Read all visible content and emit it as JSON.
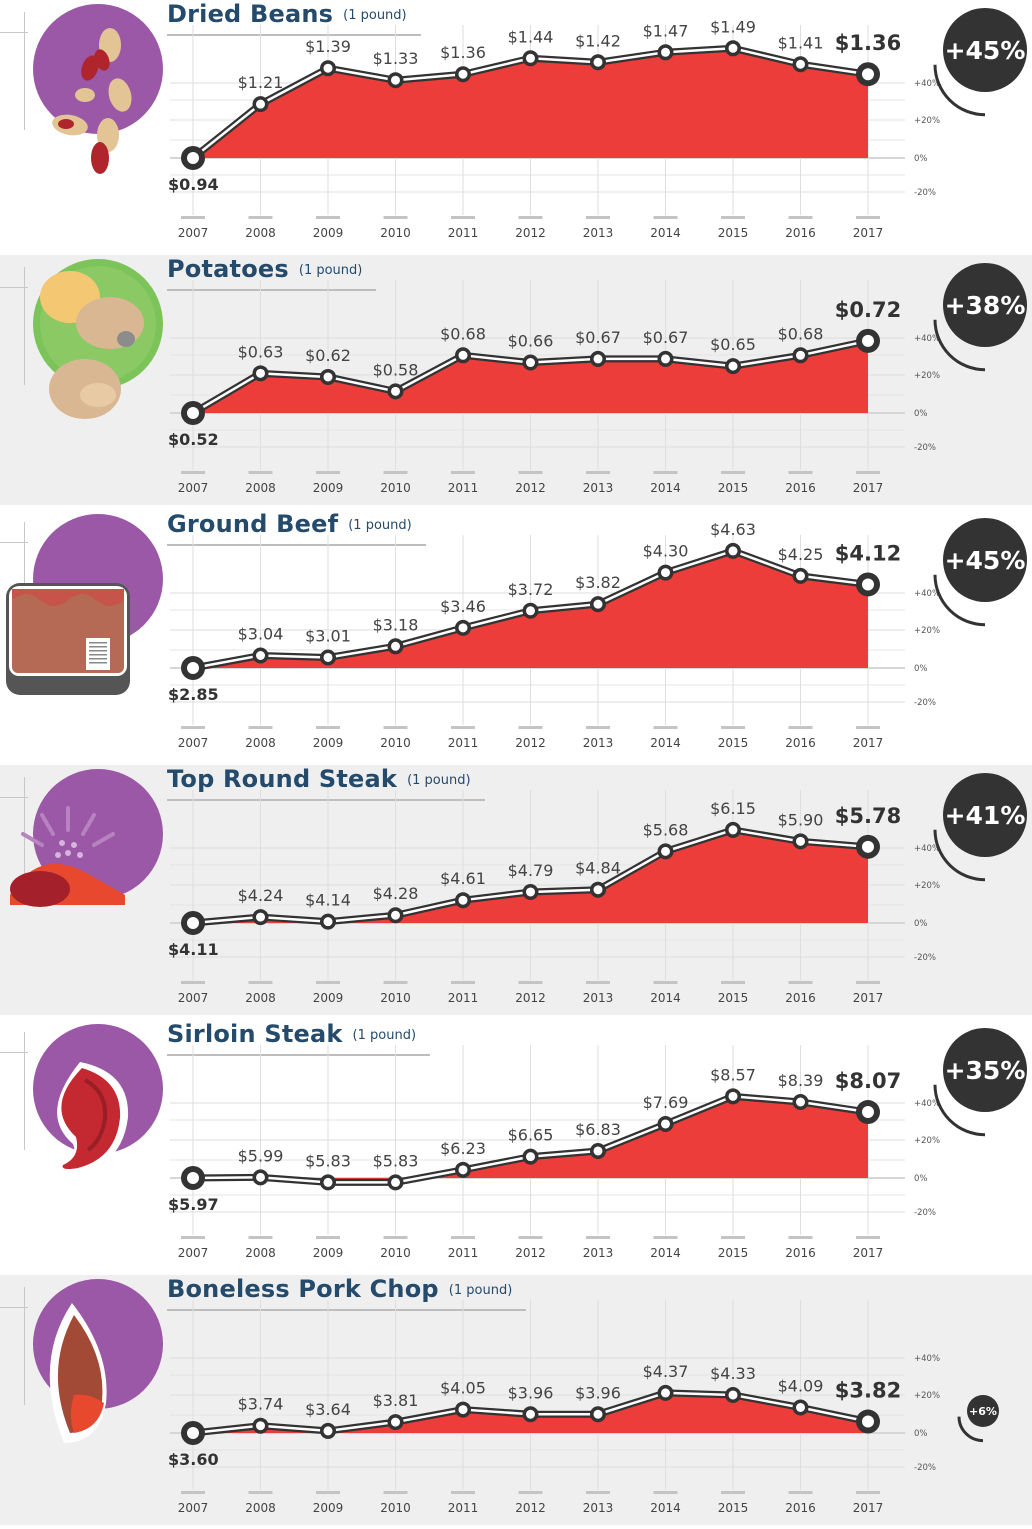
{
  "years": [
    "2007",
    "2008",
    "2009",
    "2010",
    "2011",
    "2012",
    "2013",
    "2014",
    "2015",
    "2016",
    "2017"
  ],
  "pct_ticks": [
    "+40%",
    "+20%",
    "0%",
    "-20%"
  ],
  "chart_data": [
    {
      "type": "area",
      "title": "Dried Beans",
      "unit": "(1 pound)",
      "x": [
        "2007",
        "2008",
        "2009",
        "2010",
        "2011",
        "2012",
        "2013",
        "2014",
        "2015",
        "2016",
        "2017"
      ],
      "values": [
        0.94,
        1.21,
        1.39,
        1.33,
        1.36,
        1.44,
        1.42,
        1.47,
        1.49,
        1.41,
        1.36
      ],
      "labels": [
        "$0.94",
        "$1.21",
        "$1.39",
        "$1.33",
        "$1.36",
        "$1.44",
        "$1.42",
        "$1.47",
        "$1.49",
        "$1.41",
        "$1.36"
      ],
      "change": "+45%",
      "change_value": 45,
      "icon": "beans-icon"
    },
    {
      "type": "area",
      "title": "Potatoes",
      "unit": "(1 pound)",
      "x": [
        "2007",
        "2008",
        "2009",
        "2010",
        "2011",
        "2012",
        "2013",
        "2014",
        "2015",
        "2016",
        "2017"
      ],
      "values": [
        0.52,
        0.63,
        0.62,
        0.58,
        0.68,
        0.66,
        0.67,
        0.67,
        0.65,
        0.68,
        0.72
      ],
      "labels": [
        "$0.52",
        "$0.63",
        "$0.62",
        "$0.58",
        "$0.68",
        "$0.66",
        "$0.67",
        "$0.67",
        "$0.65",
        "$0.68",
        "$0.72"
      ],
      "change": "+38%",
      "change_value": 38,
      "icon": "potatoes-icon"
    },
    {
      "type": "area",
      "title": "Ground Beef",
      "unit": "(1 pound)",
      "x": [
        "2007",
        "2008",
        "2009",
        "2010",
        "2011",
        "2012",
        "2013",
        "2014",
        "2015",
        "2016",
        "2017"
      ],
      "values": [
        2.85,
        3.04,
        3.01,
        3.18,
        3.46,
        3.72,
        3.82,
        4.3,
        4.63,
        4.25,
        4.12
      ],
      "labels": [
        "$2.85",
        "$3.04",
        "$3.01",
        "$3.18",
        "$3.46",
        "$3.72",
        "$3.82",
        "$4.30",
        "$4.63",
        "$4.25",
        "$4.12"
      ],
      "change": "+45%",
      "change_value": 45,
      "icon": "ground-beef-icon"
    },
    {
      "type": "area",
      "title": "Top Round Steak",
      "unit": "(1 pound)",
      "x": [
        "2007",
        "2008",
        "2009",
        "2010",
        "2011",
        "2012",
        "2013",
        "2014",
        "2015",
        "2016",
        "2017"
      ],
      "values": [
        4.11,
        4.24,
        4.14,
        4.28,
        4.61,
        4.79,
        4.84,
        5.68,
        6.15,
        5.9,
        5.78
      ],
      "labels": [
        "$4.11",
        "$4.24",
        "$4.14",
        "$4.28",
        "$4.61",
        "$4.79",
        "$4.84",
        "$5.68",
        "$6.15",
        "$5.90",
        "$5.78"
      ],
      "change": "+41%",
      "change_value": 41,
      "icon": "top-round-steak-icon"
    },
    {
      "type": "area",
      "title": "Sirloin Steak",
      "unit": "(1 pound)",
      "x": [
        "2007",
        "2008",
        "2009",
        "2010",
        "2011",
        "2012",
        "2013",
        "2014",
        "2015",
        "2016",
        "2017"
      ],
      "values": [
        5.97,
        5.99,
        5.83,
        5.83,
        6.23,
        6.65,
        6.83,
        7.69,
        8.57,
        8.39,
        8.07
      ],
      "labels": [
        "$5.97",
        "$5.99",
        "$5.83",
        "$5.83",
        "$6.23",
        "$6.65",
        "$6.83",
        "$7.69",
        "$8.57",
        "$8.39",
        "$8.07"
      ],
      "change": "+35%",
      "change_value": 35,
      "icon": "sirloin-steak-icon"
    },
    {
      "type": "area",
      "title": "Boneless Pork Chop",
      "unit": "(1 pound)",
      "x": [
        "2007",
        "2008",
        "2009",
        "2010",
        "2011",
        "2012",
        "2013",
        "2014",
        "2015",
        "2016",
        "2017"
      ],
      "values": [
        3.6,
        3.74,
        3.64,
        3.81,
        4.05,
        3.96,
        3.96,
        4.37,
        4.33,
        4.09,
        3.82
      ],
      "labels": [
        "$3.60",
        "$3.74",
        "$3.64",
        "$3.81",
        "$4.05",
        "$3.96",
        "$3.96",
        "$4.37",
        "$4.33",
        "$4.09",
        "$3.82"
      ],
      "change": "+6%",
      "change_value": 6,
      "icon": "pork-chop-icon"
    }
  ],
  "colors": {
    "area": "#ec3d3a",
    "title": "#244a6c",
    "badge": "#333333",
    "circle": "#9a58a6",
    "potato_circle": "#7cc45a"
  }
}
